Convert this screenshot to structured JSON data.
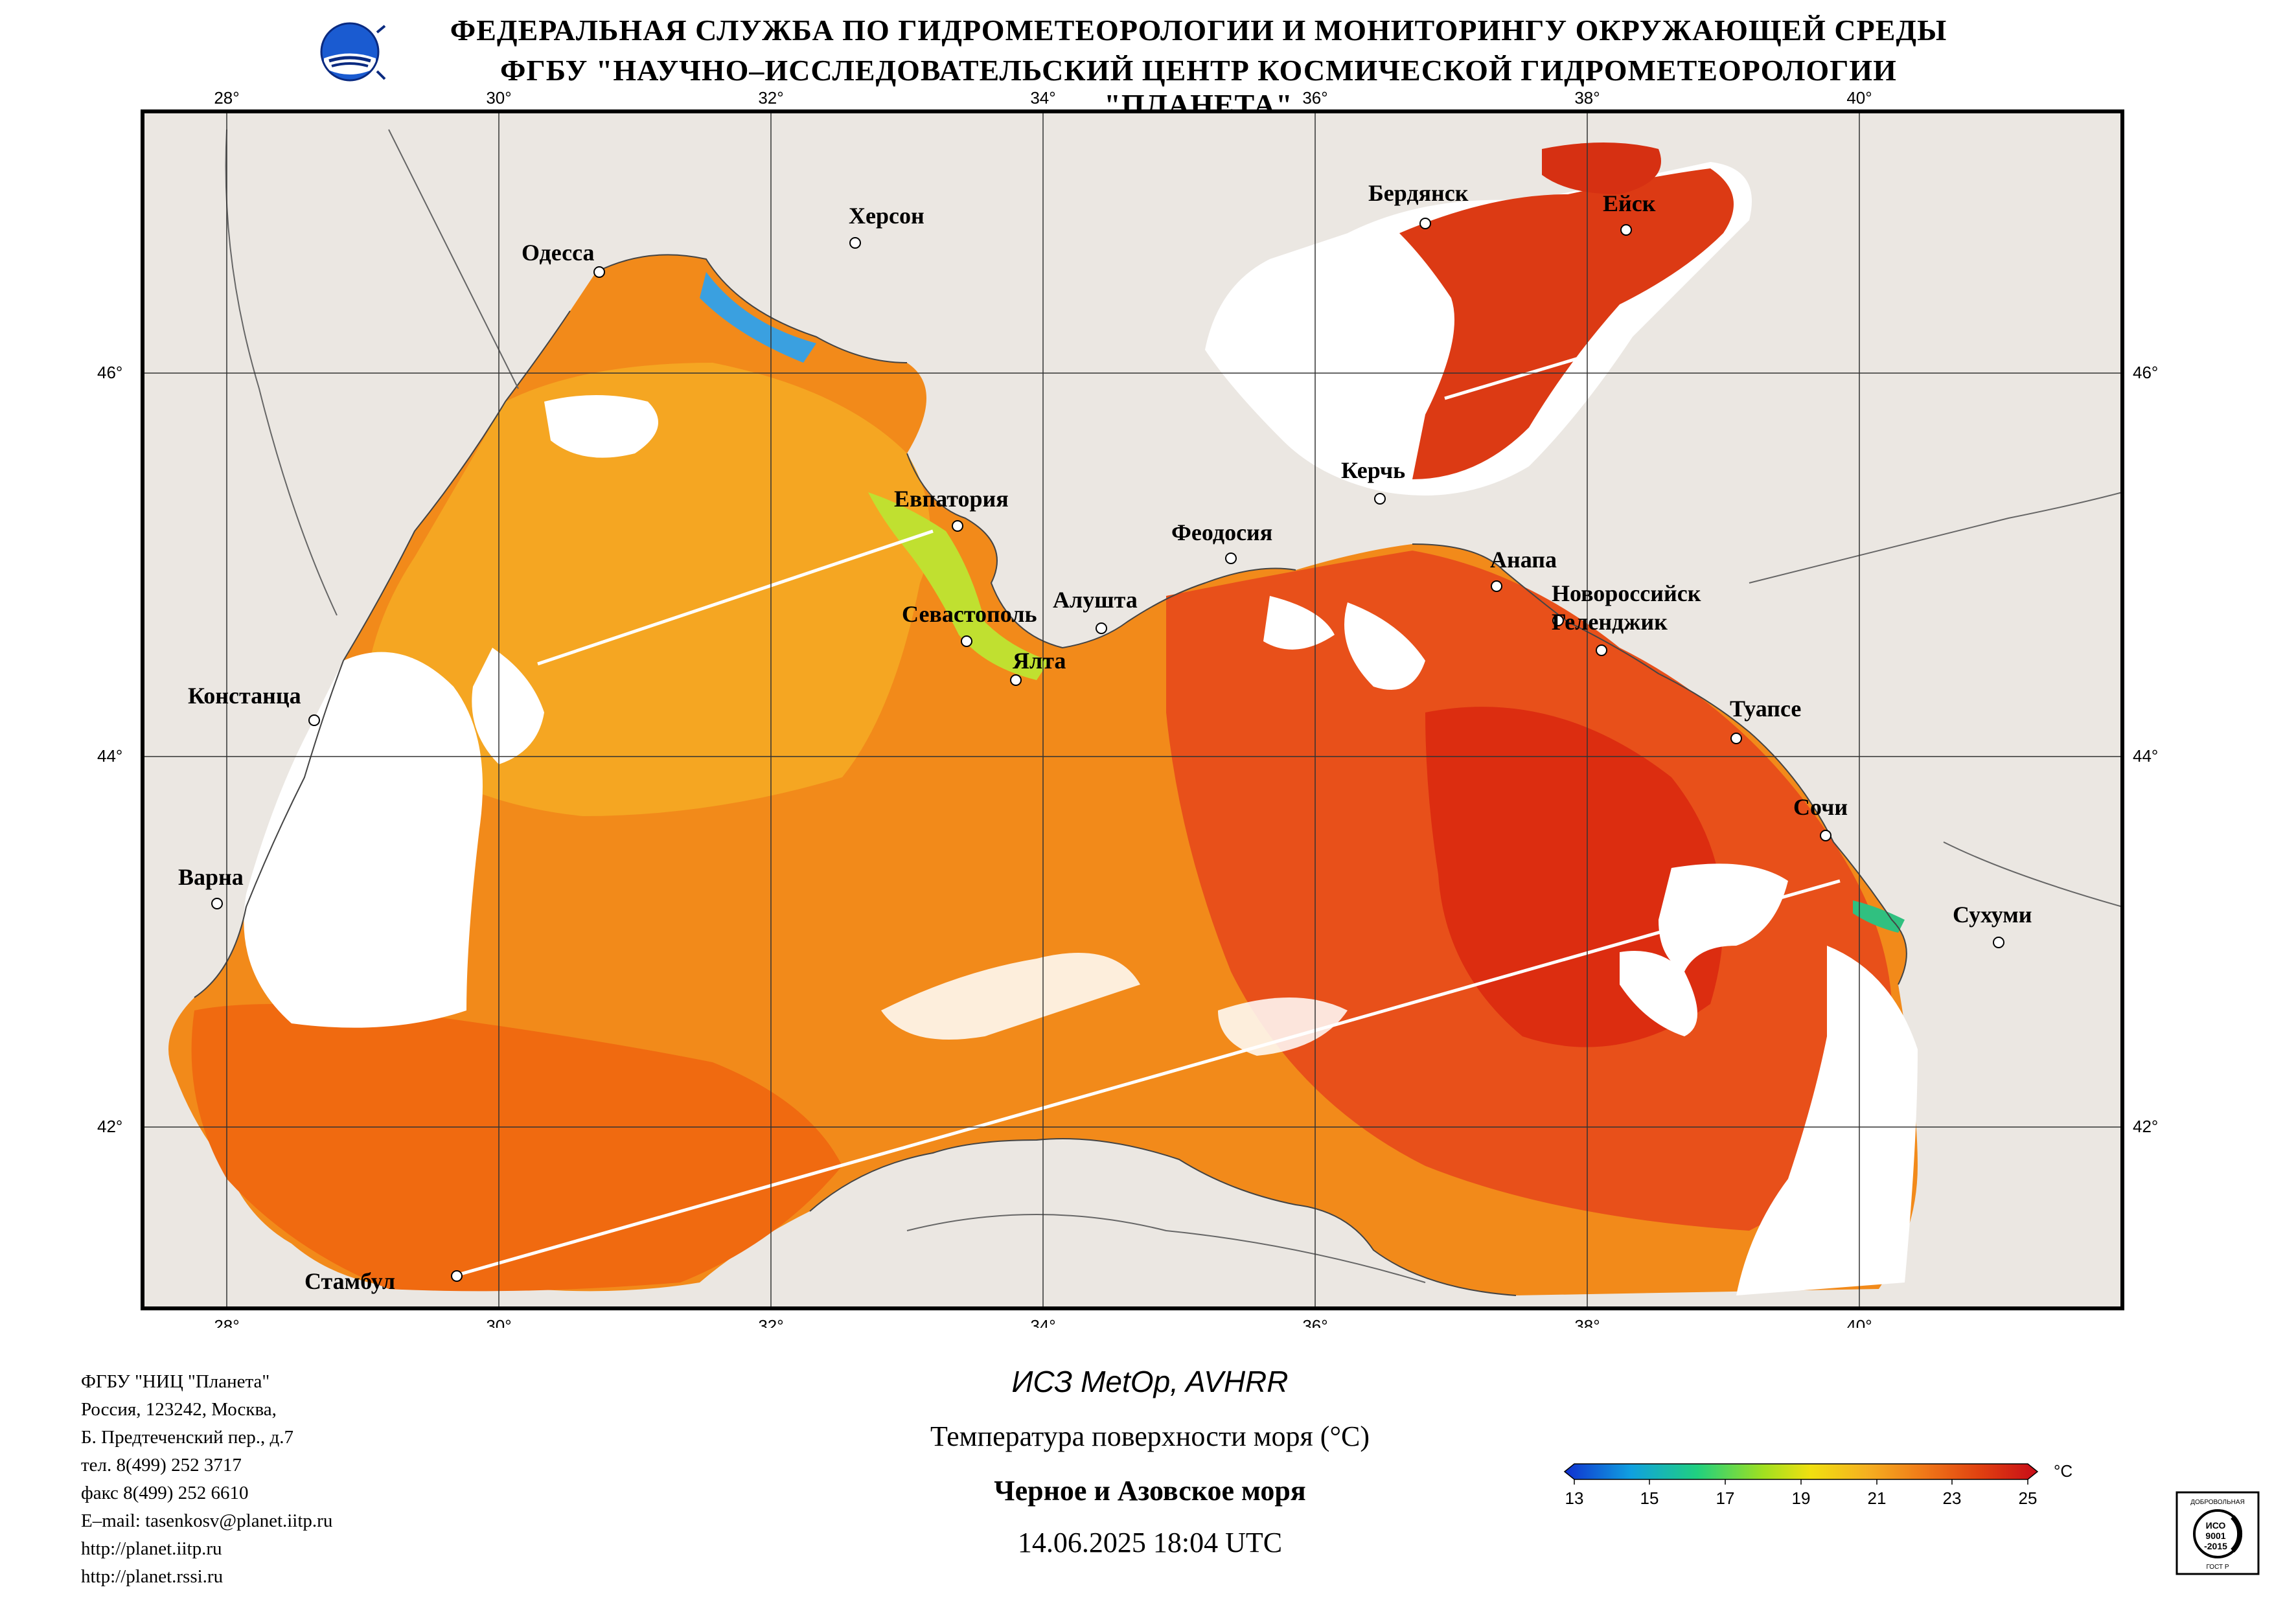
{
  "header": {
    "line1": "ФЕДЕРАЛЬНАЯ СЛУЖБА ПО ГИДРОМЕТЕОРОЛОГИИ И МОНИТОРИНГУ ОКРУЖАЮЩЕЙ СРЕДЫ",
    "line2": "ФГБУ \"НАУЧНО–ИССЛЕДОВАТЕЛЬСКИЙ ЦЕНТР КОСМИЧЕСКОЙ ГИДРОМЕТЕОРОЛОГИИ \"ПЛАНЕТА\""
  },
  "map": {
    "lon_labels": [
      "28°",
      "30°",
      "32°",
      "34°",
      "36°",
      "38°",
      "40°"
    ],
    "lat_labels": [
      "46°",
      "44°",
      "42°"
    ],
    "cities": {
      "odessa": "Одесса",
      "kherson": "Херсон",
      "berdyansk": "Бердянск",
      "yeysk": "Ейск",
      "kerch": "Керчь",
      "yevpatoria": "Евпатория",
      "feodosia": "Феодосия",
      "anapa": "Анапа",
      "novorossiysk": "Новороссийск",
      "gelendzhik": "Геленджик",
      "alushta": "Алушта",
      "sevastopol": "Севастополь",
      "yalta": "Ялта",
      "constanta": "Констанца",
      "tuapse": "Туапсе",
      "sochi": "Сочи",
      "varna": "Варна",
      "sukhumi": "Сухуми",
      "istanbul": "Стамбул"
    },
    "colors": {
      "land": "#ebe7e2",
      "cloud": "#ffffff",
      "warm": "#f06a10",
      "cool": "#f5a622",
      "hot": "#dc2d10"
    }
  },
  "footer": {
    "satellite": "ИСЗ MetOp, AVHRR",
    "product": "Температура поверхности моря (°C)",
    "region": "Черное и Азовское моря",
    "datetime": "14.06.2025 18:04 UTC",
    "address": [
      "ФГБУ \"НИЦ \"Планета\"",
      "Россия, 123242, Москва,",
      "Б. Предтеченский пер., д.7",
      "тел. 8(499) 252 3717",
      "факс 8(499) 252 6610",
      "E–mail: tasenkosv@planet.iitp.ru",
      "http://planet.iitp.ru",
      "http://planet.rssi.ru"
    ]
  },
  "colorbar": {
    "unit": "°C",
    "ticks": [
      "13",
      "15",
      "17",
      "19",
      "21",
      "23",
      "25"
    ],
    "stops": [
      "#1030d0",
      "#10a0e0",
      "#20d080",
      "#a0e020",
      "#f0e010",
      "#f5b020",
      "#f07818",
      "#e04010",
      "#c80c18"
    ]
  },
  "cert": {
    "top": "ДОБРОВОЛЬНАЯ",
    "mid1": "ИСО",
    "mid2": "9001",
    "mid3": "-2015",
    "bottom": "ГОСТ Р"
  }
}
